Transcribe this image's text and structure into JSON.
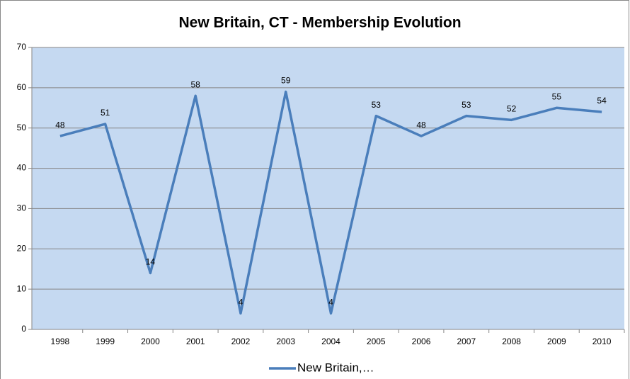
{
  "chart_data": {
    "type": "line",
    "title": "New Britain, CT - Membership Evolution",
    "categories": [
      "1998",
      "1999",
      "2000",
      "2001",
      "2002",
      "2003",
      "2004",
      "2005",
      "2006",
      "2007",
      "2008",
      "2009",
      "2010"
    ],
    "series": [
      {
        "name": "New Britain,…",
        "color": "#4a7ebb",
        "values": [
          48,
          51,
          14,
          58,
          4,
          59,
          4,
          53,
          48,
          53,
          52,
          55,
          54
        ]
      }
    ],
    "ylim": [
      0,
      70
    ],
    "yticks": [
      0,
      10,
      20,
      30,
      40,
      50,
      60,
      70
    ],
    "grid": true,
    "legend": "bottom",
    "data_labels": true
  }
}
